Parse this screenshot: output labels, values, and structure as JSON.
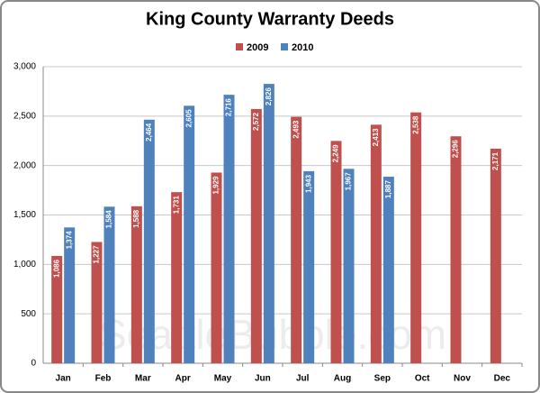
{
  "chart_data": {
    "type": "bar",
    "title": "King County Warranty Deeds",
    "watermark": "SeattleBubble.com",
    "categories": [
      "Jan",
      "Feb",
      "Mar",
      "Apr",
      "May",
      "Jun",
      "Jul",
      "Aug",
      "Sep",
      "Oct",
      "Nov",
      "Dec"
    ],
    "series": [
      {
        "name": "2009",
        "color": "#c0504d",
        "values": [
          1086,
          1227,
          1588,
          1731,
          1929,
          2572,
          2493,
          2249,
          2413,
          2538,
          2296,
          2171
        ],
        "value_labels": [
          "1,086",
          "1,227",
          "1,588",
          "1,731",
          "1,929",
          "2,572",
          "2,493",
          "2,249",
          "2,413",
          "2,538",
          "2,296",
          "2,171"
        ]
      },
      {
        "name": "2010",
        "color": "#4f81bd",
        "values": [
          1374,
          1584,
          2464,
          2605,
          2716,
          2826,
          1943,
          1967,
          1887,
          null,
          null,
          null
        ],
        "value_labels": [
          "1,374",
          "1,584",
          "2,464",
          "2,605",
          "2,716",
          "2,826",
          "1,943",
          "1,967",
          "1,887",
          null,
          null,
          null
        ]
      }
    ],
    "ylim": [
      0,
      3000
    ],
    "yticks": [
      0,
      500,
      {
        "value": 1000,
        "label": "1,000"
      },
      {
        "value": 1500,
        "label": "1,500"
      },
      {
        "value": 2000,
        "label": "2,000"
      },
      {
        "value": 2500,
        "label": "2,500"
      },
      {
        "value": 3000,
        "label": "3,000"
      }
    ],
    "grid": true,
    "legend": "top"
  }
}
